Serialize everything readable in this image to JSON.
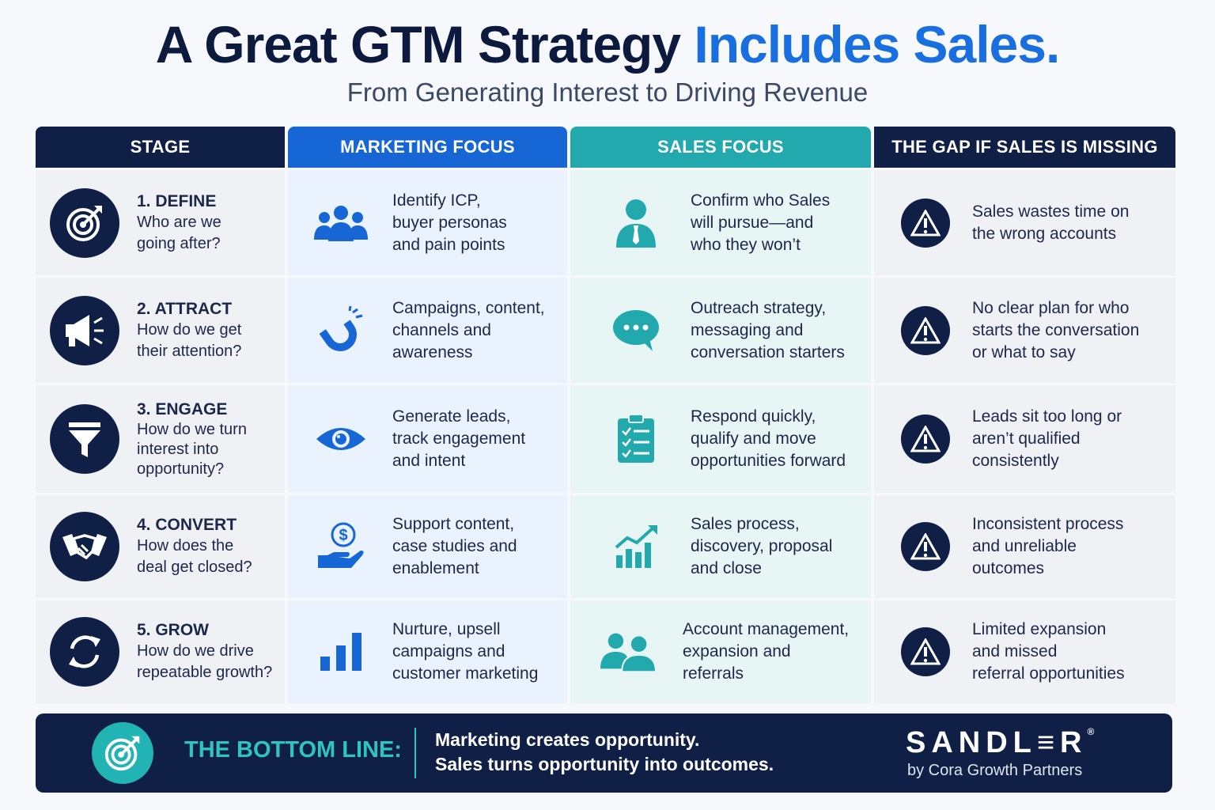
{
  "title": {
    "main": "A Great GTM Strategy",
    "accent": "Includes Sales."
  },
  "subtitle": "From Generating Interest to Driving Revenue",
  "headers": {
    "stage": "STAGE",
    "marketing": "MARKETING FOCUS",
    "sales": "SALES FOCUS",
    "gap": "THE GAP IF SALES IS MISSING"
  },
  "colors": {
    "navy": "#0f1f45",
    "marketing_blue": "#1766d6",
    "sales_teal": "#22a9ad",
    "title_accent": "#1a6fe0"
  },
  "rows": [
    {
      "stage_name": "1. DEFINE",
      "stage_question": "Who are we\ngoing after?",
      "stage_icon": "target-icon",
      "marketing_icon": "people-group-icon",
      "marketing": "Identify ICP,\nbuyer personas\nand pain points",
      "sales_icon": "salesperson-icon",
      "sales": "Confirm who Sales\nwill pursue—and\nwho they won’t",
      "gap_icon": "warning-icon",
      "gap": "Sales wastes time on\nthe wrong accounts"
    },
    {
      "stage_name": "2. ATTRACT",
      "stage_question": "How do we get\ntheir attention?",
      "stage_icon": "megaphone-icon",
      "marketing_icon": "magnet-icon",
      "marketing": "Campaigns, content,\nchannels and\nawareness",
      "sales_icon": "chat-bubble-icon",
      "sales": "Outreach strategy,\nmessaging and\nconversation starters",
      "gap_icon": "warning-icon",
      "gap": "No clear plan for who\nstarts the conversation\nor what to say"
    },
    {
      "stage_name": "3. ENGAGE",
      "stage_question": "How do we turn\ninterest into\nopportunity?",
      "stage_icon": "funnel-icon",
      "marketing_icon": "eye-icon",
      "marketing": "Generate leads,\ntrack engagement\nand intent",
      "sales_icon": "clipboard-checklist-icon",
      "sales": "Respond quickly,\nqualify and move\nopportunities forward",
      "gap_icon": "warning-icon",
      "gap": "Leads sit too long or\naren’t qualified\nconsistently"
    },
    {
      "stage_name": "4. CONVERT",
      "stage_question": "How does the\ndeal get closed?",
      "stage_icon": "handshake-icon",
      "marketing_icon": "money-hand-icon",
      "marketing": "Support content,\ncase studies and\nenablement",
      "sales_icon": "growth-chart-icon",
      "sales": "Sales process,\ndiscovery, proposal\nand close",
      "gap_icon": "warning-icon",
      "gap": "Inconsistent process\nand unreliable\noutcomes"
    },
    {
      "stage_name": "5. GROW",
      "stage_question": "How do we drive\nrepeatable growth?",
      "stage_icon": "refresh-cycle-icon",
      "marketing_icon": "bar-chart-icon",
      "marketing": "Nurture, upsell\ncampaigns and\ncustomer marketing",
      "sales_icon": "account-people-icon",
      "sales": "Account management,\nexpansion and\nreferrals",
      "gap_icon": "warning-icon",
      "gap": "Limited expansion\nand missed\nreferral opportunities"
    }
  ],
  "bottom_line": {
    "icon": "target-icon",
    "label": "THE BOTTOM LINE:",
    "line1": "Marketing creates opportunity.",
    "line2": "Sales turns opportunity into outcomes."
  },
  "brand": {
    "name": "SANDL≡R",
    "registered": "®",
    "sub": "by Cora Growth Partners"
  }
}
